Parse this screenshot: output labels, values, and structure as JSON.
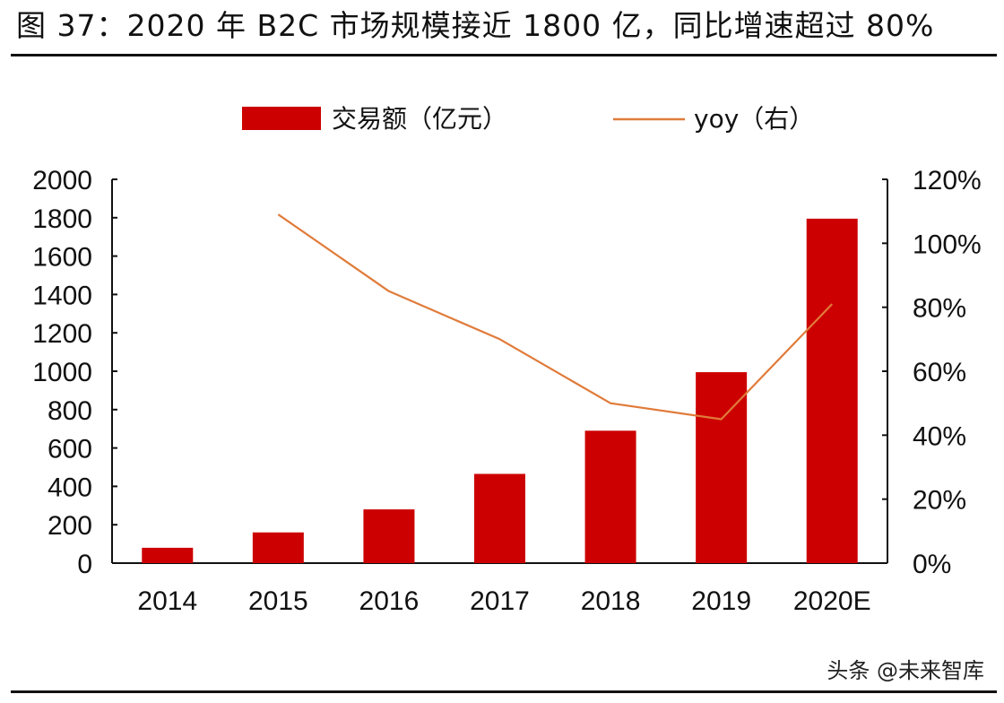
{
  "title": "图 37：2020 年 B2C 市场规模接近 1800 亿，同比增速超过 80%",
  "watermark": "头条 @未来智库",
  "colors": {
    "bar": "#cc0000",
    "line": "#e07b3a",
    "axis": "#111111"
  },
  "chart_data": {
    "type": "bar",
    "categories": [
      "2014",
      "2015",
      "2016",
      "2017",
      "2018",
      "2019",
      "2020E"
    ],
    "series": [
      {
        "name": "交易额（亿元）",
        "type": "bar",
        "axis": "left",
        "values": [
          80,
          160,
          280,
          465,
          690,
          995,
          1795
        ]
      },
      {
        "name": "yoy（右）",
        "type": "line",
        "axis": "right",
        "values": [
          null,
          1.09,
          0.85,
          0.7,
          0.5,
          0.45,
          0.81
        ]
      }
    ],
    "y_left": {
      "ylim": [
        0,
        2000
      ],
      "ticks": [
        "0",
        "200",
        "400",
        "600",
        "800",
        "1000",
        "1200",
        "1400",
        "1600",
        "1800",
        "2000"
      ]
    },
    "y_right": {
      "ylim": [
        0,
        1.2
      ],
      "ticks": [
        "0%",
        "20%",
        "40%",
        "60%",
        "80%",
        "100%",
        "120%"
      ]
    },
    "legend": {
      "placement": "top-center",
      "bar_label": "交易额（亿元）",
      "line_label": "yoy（右）"
    },
    "grid": false
  }
}
